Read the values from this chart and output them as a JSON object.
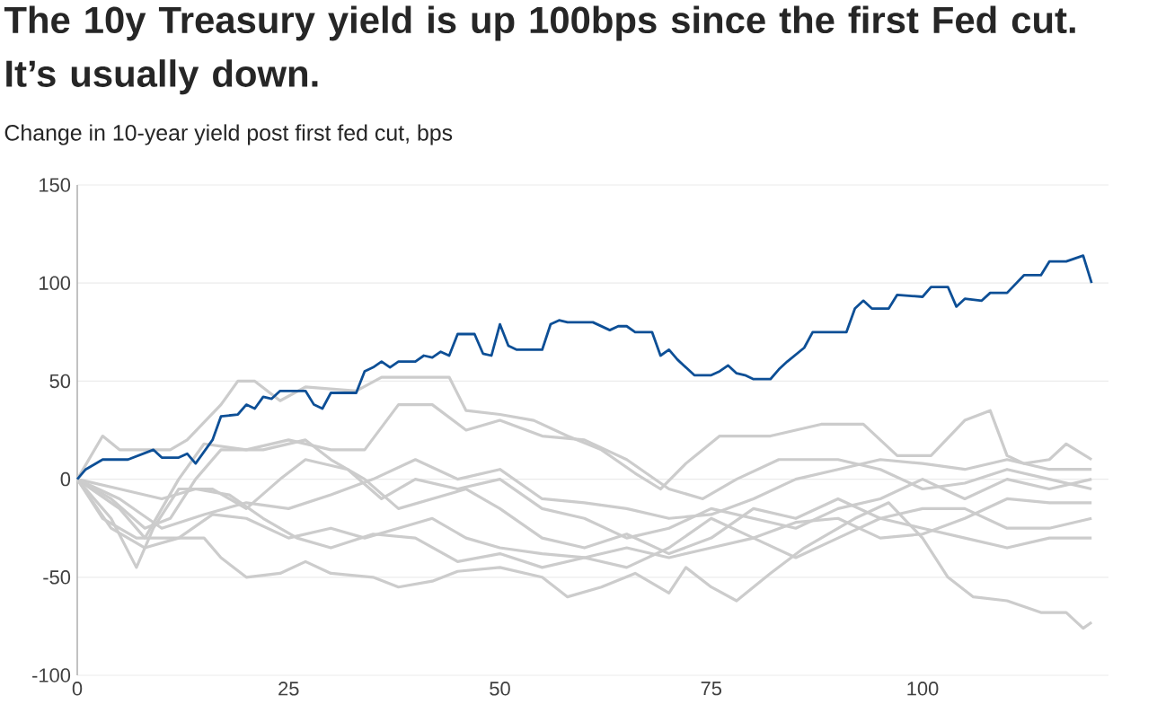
{
  "chart_data": {
    "type": "line",
    "title": "The 10y Treasury yield is up 100bps since the first Fed cut. It’s usually down.",
    "subtitle": "Change in 10-year yield post first fed cut, bps",
    "xlim": [
      0,
      122
    ],
    "xticks": [
      0,
      25,
      50,
      75,
      100
    ],
    "ylim": [
      -100,
      150
    ],
    "yticks": [
      -100,
      -50,
      0,
      50,
      100,
      150
    ],
    "grid": "y",
    "legend": false,
    "series": [
      {
        "color": "#cccccc",
        "x": [
          0,
          3,
          5,
          11,
          13,
          17,
          19,
          21,
          24,
          27,
          33,
          36,
          44,
          46,
          50,
          54,
          58,
          62,
          66,
          69,
          72,
          76,
          82,
          88,
          93,
          97,
          101,
          105,
          108,
          110,
          112,
          115,
          117,
          120
        ],
        "values": [
          0,
          22,
          15,
          15,
          20,
          38,
          50,
          50,
          40,
          47,
          45,
          52,
          52,
          35,
          33,
          30,
          22,
          15,
          3,
          -5,
          8,
          22,
          22,
          28,
          28,
          12,
          12,
          30,
          35,
          12,
          8,
          10,
          18,
          10
        ]
      },
      {
        "color": "#cccccc",
        "x": [
          0,
          3,
          7,
          12,
          15,
          17,
          20,
          24,
          27,
          30,
          35,
          38,
          42,
          45,
          50,
          55,
          58,
          62,
          66,
          70,
          72,
          75,
          78,
          82,
          86,
          92,
          96,
          100,
          103,
          106,
          110,
          114,
          117,
          119,
          120
        ],
        "values": [
          0,
          -20,
          -30,
          -30,
          -30,
          -40,
          -50,
          -48,
          -42,
          -48,
          -50,
          -55,
          -52,
          -47,
          -45,
          -50,
          -60,
          -55,
          -48,
          -58,
          -45,
          -55,
          -62,
          -48,
          -35,
          -20,
          -12,
          -30,
          -50,
          -60,
          -62,
          -68,
          -68,
          -76,
          -73
        ]
      },
      {
        "color": "#cccccc",
        "x": [
          0,
          5,
          8,
          12,
          15,
          20,
          25,
          30,
          34,
          38,
          42,
          46,
          50,
          55,
          60,
          65,
          70,
          74,
          78,
          83,
          90,
          95,
          100,
          105,
          110,
          115,
          120
        ],
        "values": [
          0,
          -15,
          -30,
          0,
          18,
          15,
          20,
          15,
          15,
          38,
          38,
          25,
          30,
          22,
          20,
          10,
          -5,
          -10,
          0,
          10,
          10,
          5,
          -5,
          -2,
          5,
          0,
          -5
        ]
      },
      {
        "color": "#cccccc",
        "x": [
          0,
          4,
          7,
          9,
          12,
          16,
          20,
          24,
          27,
          32,
          36,
          40,
          45,
          50,
          55,
          60,
          65,
          70,
          75,
          80,
          85,
          90,
          95,
          100,
          105,
          110,
          115,
          120
        ],
        "values": [
          0,
          -20,
          -45,
          -25,
          -5,
          -5,
          -15,
          0,
          10,
          5,
          -10,
          0,
          -5,
          0,
          -15,
          -20,
          -30,
          -25,
          -15,
          -20,
          -25,
          -15,
          -10,
          0,
          -10,
          0,
          -5,
          0
        ]
      },
      {
        "color": "#cccccc",
        "x": [
          0,
          4,
          8,
          11,
          14,
          17,
          22,
          27,
          30,
          34,
          38,
          42,
          46,
          50,
          55,
          60,
          65,
          70,
          75,
          80,
          85,
          90,
          95,
          100,
          105,
          110,
          115,
          120
        ],
        "values": [
          0,
          -10,
          -25,
          -20,
          0,
          15,
          15,
          20,
          10,
          0,
          -15,
          -10,
          -5,
          -15,
          -30,
          -35,
          -28,
          -38,
          -30,
          -15,
          -20,
          -10,
          -20,
          -15,
          -15,
          -25,
          -25,
          -20
        ]
      },
      {
        "color": "#cccccc",
        "x": [
          0,
          4,
          8,
          12,
          16,
          20,
          25,
          30,
          34,
          38,
          42,
          46,
          50,
          55,
          60,
          65,
          70,
          75,
          80,
          85,
          90,
          95,
          100,
          105,
          110,
          115,
          120
        ],
        "values": [
          0,
          -25,
          -35,
          -30,
          -18,
          -20,
          -30,
          -25,
          -30,
          -25,
          -20,
          -30,
          -35,
          -38,
          -40,
          -35,
          -40,
          -35,
          -30,
          -40,
          -30,
          -20,
          -25,
          -30,
          -35,
          -30,
          -30
        ]
      },
      {
        "color": "#cccccc",
        "x": [
          0,
          5,
          10,
          14,
          18,
          22,
          26,
          30,
          35,
          40,
          45,
          50,
          55,
          60,
          65,
          70,
          75,
          80,
          85,
          90,
          95,
          100,
          105,
          110,
          115,
          120
        ],
        "values": [
          0,
          -5,
          -10,
          -5,
          -8,
          -20,
          -30,
          -35,
          -28,
          -30,
          -42,
          -38,
          -45,
          -40,
          -45,
          -35,
          -20,
          -30,
          -22,
          -20,
          -30,
          -28,
          -20,
          -10,
          -12,
          -12
        ]
      },
      {
        "color": "#cccccc",
        "x": [
          0,
          5,
          10,
          15,
          20,
          25,
          30,
          35,
          40,
          45,
          50,
          55,
          60,
          65,
          70,
          75,
          80,
          85,
          90,
          95,
          100,
          105,
          110,
          115,
          120
        ],
        "values": [
          0,
          -10,
          -25,
          -18,
          -12,
          -15,
          -8,
          0,
          10,
          0,
          5,
          -10,
          -12,
          -15,
          -20,
          -18,
          -10,
          0,
          5,
          10,
          8,
          5,
          10,
          5,
          5
        ]
      },
      {
        "color": "#0d4f96",
        "x": [
          0,
          1,
          3,
          6,
          9,
          10,
          12,
          13,
          14,
          16,
          17,
          19,
          20,
          21,
          22,
          23,
          24,
          27,
          28,
          29,
          30,
          33,
          34,
          35,
          36,
          37,
          38,
          40,
          41,
          42,
          43,
          44,
          45,
          47,
          48,
          49,
          50,
          51,
          52,
          55,
          56,
          57,
          58,
          61,
          63,
          64,
          65,
          66,
          68,
          69,
          70,
          71,
          73,
          75,
          76,
          77,
          78,
          79,
          80,
          82,
          83,
          84,
          86,
          87,
          91,
          92,
          93,
          94,
          96,
          97,
          100,
          101,
          103,
          104,
          105,
          107,
          108,
          110,
          112,
          114,
          115,
          117,
          119,
          120
        ],
        "values": [
          0,
          5,
          10,
          10,
          15,
          11,
          11,
          13,
          8,
          20,
          32,
          33,
          38,
          36,
          42,
          41,
          45,
          45,
          38,
          36,
          44,
          44,
          55,
          57,
          60,
          57,
          60,
          60,
          63,
          62,
          65,
          63,
          74,
          74,
          64,
          63,
          79,
          68,
          66,
          66,
          79,
          81,
          80,
          80,
          76,
          78,
          78,
          75,
          75,
          63,
          66,
          61,
          53,
          53,
          55,
          58,
          54,
          53,
          51,
          51,
          56,
          60,
          67,
          75,
          75,
          87,
          91,
          87,
          87,
          94,
          93,
          98,
          98,
          88,
          92,
          91,
          95,
          95,
          104,
          104,
          111,
          111,
          114,
          100
        ]
      }
    ]
  }
}
